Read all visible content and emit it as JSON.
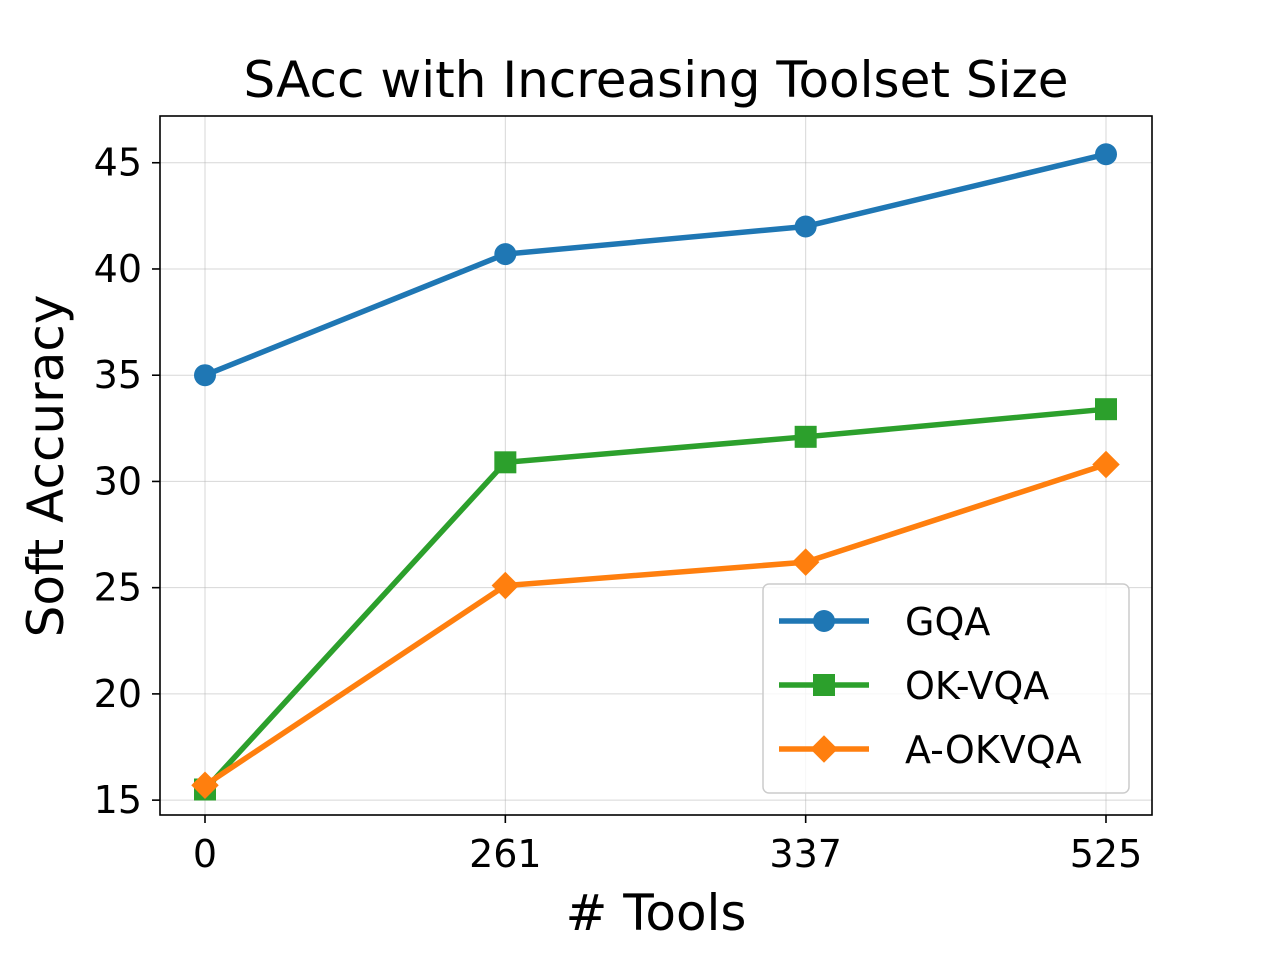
{
  "chart_data": {
    "type": "line",
    "title": "SAcc with Increasing Toolset Size",
    "xlabel": "# Tools",
    "ylabel": "Soft Accuracy",
    "categories": [
      "0",
      "261",
      "337",
      "525"
    ],
    "ylim": [
      14.3,
      47.2
    ],
    "yticks": [
      15,
      20,
      25,
      30,
      35,
      40,
      45
    ],
    "grid": true,
    "legend_position": "lower-right",
    "series": [
      {
        "name": "GQA",
        "values": [
          35.0,
          40.7,
          42.0,
          45.4
        ],
        "color": "#1f77b4",
        "marker": "circle"
      },
      {
        "name": "OK-VQA",
        "values": [
          15.5,
          30.9,
          32.1,
          33.4
        ],
        "color": "#2ca02c",
        "marker": "square"
      },
      {
        "name": "A-OKVQA",
        "values": [
          15.7,
          25.1,
          26.2,
          30.8
        ],
        "color": "#ff7f0e",
        "marker": "diamond"
      }
    ]
  }
}
